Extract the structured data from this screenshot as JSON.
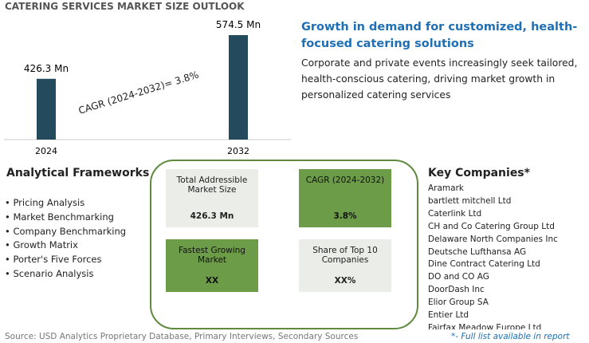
{
  "chart_data": {
    "type": "bar",
    "title": "CATERING SERVICES MARKET SIZE OUTLOOK",
    "categories": [
      "2024",
      "2032"
    ],
    "values": [
      426.3,
      574.5
    ],
    "value_labels": [
      "426.3 Mn",
      "574.5 Mn"
    ],
    "color": "#244a5e",
    "ylim": [
      220,
      580
    ],
    "annotation": "CAGR (2024-2032)=  3.8%"
  },
  "insight": {
    "title": "Growth in demand for customized, health-focused catering solutions",
    "text": "Corporate and private events increasingly seek tailored, health-conscious catering, driving market growth in personalized catering services"
  },
  "frameworks": {
    "title": "Analytical Frameworks",
    "items": [
      "Pricing Analysis",
      "Market Benchmarking",
      "Company Benchmarking",
      "Growth Matrix",
      "Porter's Five Forces",
      "Scenario Analysis"
    ]
  },
  "metrics": [
    {
      "label": "Total Addressible Market Size",
      "value": "426.3 Mn"
    },
    {
      "label": "CAGR (2024-2032)",
      "value": "3.8%"
    },
    {
      "label": "Fastest Growing Market",
      "value": "XX"
    },
    {
      "label": "Share of Top 10 Companies",
      "value": "XX%"
    }
  ],
  "companies": {
    "title": "Key Companies*",
    "items": [
      "Aramark",
      "bartlett mitchell Ltd",
      "Caterlink Ltd",
      "CH and Co Catering Group Ltd",
      "Delaware North Companies Inc",
      "Deutsche Lufthansa AG",
      "Dine Contract Catering Ltd",
      "DO and CO AG",
      "DoorDash Inc",
      "Elior Group SA",
      "Entier Ltd",
      "Fairfax Meadow Europe Ltd"
    ]
  },
  "footer": {
    "source": "Source: USD Analytics Proprietary Database, Primary Interviews, Secondary Sources",
    "note": "*- Full list available in report"
  }
}
